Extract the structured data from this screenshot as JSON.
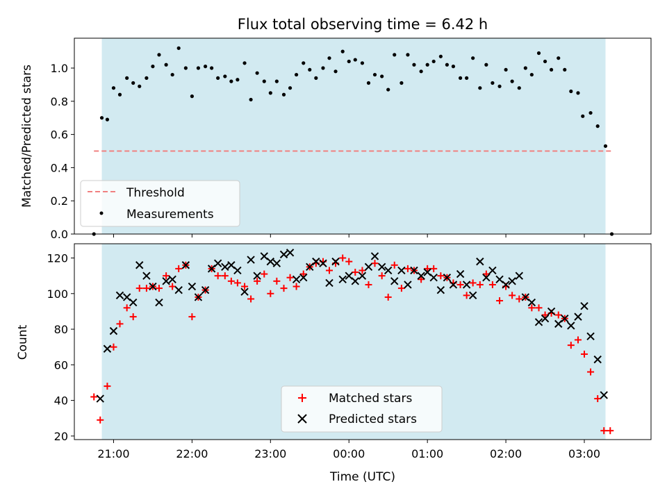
{
  "chart_data": [
    {
      "type": "scatter",
      "title": "Flux total observing time = 6.42 h",
      "xlabel": "",
      "ylabel": "Matched/Predicted stars",
      "ylim": [
        0,
        1.18
      ],
      "yticks": [
        0.0,
        0.2,
        0.4,
        0.6,
        0.8,
        1.0
      ],
      "ytick_labels": [
        "0.0",
        "0.2",
        "0.4",
        "0.6",
        "0.8",
        "1.0"
      ],
      "xlim_hours": [
        -3.5,
        3.85
      ],
      "xticks": [
        -3.0,
        -2.0,
        -1.0,
        0.0,
        1.0,
        2.0,
        3.0
      ],
      "shaded_span": [
        -3.15,
        3.27
      ],
      "shade_color": "#add8e6",
      "grid": false,
      "legend_placement": "lower left",
      "threshold": {
        "name": "Threshold",
        "value": 0.5,
        "x_range": [
          -3.25,
          3.35
        ],
        "color": "#f08080",
        "style": "dashed"
      },
      "series": [
        {
          "name": "Measurements",
          "color": "#000000",
          "points": [
            [
              -3.25,
              0.0
            ],
            [
              -3.15,
              0.7
            ],
            [
              -3.08,
              0.69
            ],
            [
              -3.0,
              0.88
            ],
            [
              -2.92,
              0.84
            ],
            [
              -2.83,
              0.94
            ],
            [
              -2.75,
              0.91
            ],
            [
              -2.67,
              0.89
            ],
            [
              -2.58,
              0.94
            ],
            [
              -2.5,
              1.01
            ],
            [
              -2.42,
              1.08
            ],
            [
              -2.33,
              1.02
            ],
            [
              -2.25,
              0.96
            ],
            [
              -2.17,
              1.12
            ],
            [
              -2.08,
              1.0
            ],
            [
              -2.0,
              0.83
            ],
            [
              -1.92,
              1.0
            ],
            [
              -1.83,
              1.01
            ],
            [
              -1.75,
              1.0
            ],
            [
              -1.67,
              0.94
            ],
            [
              -1.58,
              0.95
            ],
            [
              -1.5,
              0.92
            ],
            [
              -1.42,
              0.93
            ],
            [
              -1.33,
              1.03
            ],
            [
              -1.25,
              0.81
            ],
            [
              -1.17,
              0.97
            ],
            [
              -1.08,
              0.92
            ],
            [
              -1.0,
              0.85
            ],
            [
              -0.92,
              0.92
            ],
            [
              -0.83,
              0.84
            ],
            [
              -0.75,
              0.88
            ],
            [
              -0.67,
              0.96
            ],
            [
              -0.58,
              1.03
            ],
            [
              -0.5,
              0.99
            ],
            [
              -0.42,
              0.94
            ],
            [
              -0.33,
              1.0
            ],
            [
              -0.25,
              1.06
            ],
            [
              -0.17,
              0.98
            ],
            [
              -0.08,
              1.1
            ],
            [
              0.0,
              1.04
            ],
            [
              0.08,
              1.05
            ],
            [
              0.17,
              1.03
            ],
            [
              0.25,
              0.91
            ],
            [
              0.33,
              0.96
            ],
            [
              0.42,
              0.95
            ],
            [
              0.5,
              0.87
            ],
            [
              0.58,
              1.08
            ],
            [
              0.67,
              0.91
            ],
            [
              0.75,
              1.08
            ],
            [
              0.83,
              1.02
            ],
            [
              0.92,
              0.98
            ],
            [
              1.0,
              1.02
            ],
            [
              1.08,
              1.04
            ],
            [
              1.17,
              1.07
            ],
            [
              1.25,
              1.02
            ],
            [
              1.33,
              1.01
            ],
            [
              1.42,
              0.94
            ],
            [
              1.5,
              0.94
            ],
            [
              1.58,
              1.06
            ],
            [
              1.67,
              0.88
            ],
            [
              1.75,
              1.02
            ],
            [
              1.83,
              0.91
            ],
            [
              1.92,
              0.89
            ],
            [
              2.0,
              0.99
            ],
            [
              2.08,
              0.92
            ],
            [
              2.17,
              0.88
            ],
            [
              2.25,
              1.0
            ],
            [
              2.33,
              0.96
            ],
            [
              2.42,
              1.09
            ],
            [
              2.5,
              1.04
            ],
            [
              2.58,
              0.99
            ],
            [
              2.67,
              1.06
            ],
            [
              2.75,
              0.99
            ],
            [
              2.83,
              0.86
            ],
            [
              2.92,
              0.85
            ],
            [
              2.98,
              0.71
            ],
            [
              3.08,
              0.73
            ],
            [
              3.17,
              0.65
            ],
            [
              3.27,
              0.53
            ],
            [
              3.35,
              0.0
            ]
          ]
        }
      ]
    },
    {
      "type": "scatter",
      "title": "",
      "xlabel": "Time (UTC)",
      "ylabel": "Count",
      "ylim": [
        18,
        128
      ],
      "yticks": [
        20,
        40,
        60,
        80,
        100,
        120
      ],
      "ytick_labels": [
        "20",
        "40",
        "60",
        "80",
        "100",
        "120"
      ],
      "xlim_hours": [
        -3.5,
        3.85
      ],
      "xticks": [
        -3.0,
        -2.0,
        -1.0,
        0.0,
        1.0,
        2.0,
        3.0
      ],
      "xtick_labels": [
        "21:00",
        "22:00",
        "23:00",
        "00:00",
        "01:00",
        "02:00",
        "03:00"
      ],
      "shaded_span": [
        -3.15,
        3.27
      ],
      "shade_color": "#add8e6",
      "grid": false,
      "legend_placement": "lower center",
      "series": [
        {
          "name": "Matched stars",
          "marker": "plus",
          "color": "#ff0000",
          "points": [
            [
              -3.25,
              42
            ],
            [
              -3.17,
              29
            ],
            [
              -3.08,
              48
            ],
            [
              -3.0,
              70
            ],
            [
              -2.92,
              83
            ],
            [
              -2.83,
              92
            ],
            [
              -2.75,
              87
            ],
            [
              -2.67,
              103
            ],
            [
              -2.58,
              103
            ],
            [
              -2.5,
              104
            ],
            [
              -2.42,
              103
            ],
            [
              -2.33,
              110
            ],
            [
              -2.25,
              104
            ],
            [
              -2.17,
              114
            ],
            [
              -2.08,
              116
            ],
            [
              -2.0,
              87
            ],
            [
              -1.92,
              98
            ],
            [
              -1.83,
              102
            ],
            [
              -1.75,
              114
            ],
            [
              -1.67,
              110
            ],
            [
              -1.58,
              110
            ],
            [
              -1.5,
              107
            ],
            [
              -1.42,
              106
            ],
            [
              -1.33,
              104
            ],
            [
              -1.25,
              97
            ],
            [
              -1.17,
              107
            ],
            [
              -1.08,
              111
            ],
            [
              -1.0,
              100
            ],
            [
              -0.92,
              107
            ],
            [
              -0.83,
              103
            ],
            [
              -0.75,
              109
            ],
            [
              -0.67,
              104
            ],
            [
              -0.58,
              111
            ],
            [
              -0.5,
              115
            ],
            [
              -0.42,
              117
            ],
            [
              -0.33,
              118
            ],
            [
              -0.25,
              113
            ],
            [
              -0.17,
              117
            ],
            [
              -0.08,
              120
            ],
            [
              0.0,
              118
            ],
            [
              0.08,
              112
            ],
            [
              0.17,
              113
            ],
            [
              0.25,
              105
            ],
            [
              0.33,
              117
            ],
            [
              0.42,
              110
            ],
            [
              0.5,
              98
            ],
            [
              0.58,
              116
            ],
            [
              0.67,
              103
            ],
            [
              0.75,
              114
            ],
            [
              0.83,
              113
            ],
            [
              0.92,
              108
            ],
            [
              1.0,
              114
            ],
            [
              1.08,
              114
            ],
            [
              1.17,
              110
            ],
            [
              1.25,
              109
            ],
            [
              1.33,
              106
            ],
            [
              1.42,
              105
            ],
            [
              1.5,
              99
            ],
            [
              1.58,
              106
            ],
            [
              1.67,
              105
            ],
            [
              1.75,
              111
            ],
            [
              1.83,
              105
            ],
            [
              1.92,
              96
            ],
            [
              2.0,
              104
            ],
            [
              2.08,
              99
            ],
            [
              2.17,
              97
            ],
            [
              2.25,
              98
            ],
            [
              2.33,
              92
            ],
            [
              2.42,
              92
            ],
            [
              2.5,
              88
            ],
            [
              2.58,
              89
            ],
            [
              2.67,
              88
            ],
            [
              2.75,
              86
            ],
            [
              2.83,
              71
            ],
            [
              2.92,
              74
            ],
            [
              3.0,
              66
            ],
            [
              3.08,
              56
            ],
            [
              3.17,
              41
            ],
            [
              3.25,
              23
            ],
            [
              3.33,
              23
            ]
          ]
        },
        {
          "name": "Predicted stars",
          "marker": "x",
          "color": "#000000",
          "points": [
            [
              -3.17,
              41
            ],
            [
              -3.08,
              69
            ],
            [
              -3.0,
              79
            ],
            [
              -2.92,
              99
            ],
            [
              -2.83,
              98
            ],
            [
              -2.75,
              95
            ],
            [
              -2.67,
              116
            ],
            [
              -2.58,
              110
            ],
            [
              -2.5,
              104
            ],
            [
              -2.42,
              95
            ],
            [
              -2.33,
              107
            ],
            [
              -2.25,
              108
            ],
            [
              -2.17,
              102
            ],
            [
              -2.08,
              116
            ],
            [
              -2.0,
              104
            ],
            [
              -1.92,
              98
            ],
            [
              -1.83,
              102
            ],
            [
              -1.75,
              114
            ],
            [
              -1.67,
              117
            ],
            [
              -1.58,
              115
            ],
            [
              -1.5,
              116
            ],
            [
              -1.42,
              113
            ],
            [
              -1.33,
              101
            ],
            [
              -1.25,
              119
            ],
            [
              -1.17,
              110
            ],
            [
              -1.08,
              121
            ],
            [
              -1.0,
              118
            ],
            [
              -0.92,
              117
            ],
            [
              -0.83,
              122
            ],
            [
              -0.75,
              123
            ],
            [
              -0.67,
              108
            ],
            [
              -0.58,
              109
            ],
            [
              -0.5,
              115
            ],
            [
              -0.42,
              118
            ],
            [
              -0.33,
              117
            ],
            [
              -0.25,
              106
            ],
            [
              -0.17,
              118
            ],
            [
              -0.08,
              108
            ],
            [
              0.0,
              110
            ],
            [
              0.08,
              107
            ],
            [
              0.17,
              110
            ],
            [
              0.25,
              115
            ],
            [
              0.33,
              121
            ],
            [
              0.42,
              115
            ],
            [
              0.5,
              113
            ],
            [
              0.58,
              107
            ],
            [
              0.67,
              113
            ],
            [
              0.75,
              105
            ],
            [
              0.83,
              113
            ],
            [
              0.92,
              110
            ],
            [
              1.0,
              112
            ],
            [
              1.08,
              109
            ],
            [
              1.17,
              102
            ],
            [
              1.25,
              109
            ],
            [
              1.33,
              105
            ],
            [
              1.42,
              111
            ],
            [
              1.5,
              105
            ],
            [
              1.58,
              99
            ],
            [
              1.67,
              118
            ],
            [
              1.75,
              109
            ],
            [
              1.83,
              113
            ],
            [
              1.92,
              108
            ],
            [
              2.0,
              105
            ],
            [
              2.08,
              107
            ],
            [
              2.17,
              110
            ],
            [
              2.25,
              98
            ],
            [
              2.33,
              95
            ],
            [
              2.42,
              84
            ],
            [
              2.5,
              86
            ],
            [
              2.58,
              90
            ],
            [
              2.67,
              83
            ],
            [
              2.75,
              86
            ],
            [
              2.83,
              82
            ],
            [
              2.92,
              87
            ],
            [
              3.0,
              93
            ],
            [
              3.08,
              76
            ],
            [
              3.17,
              63
            ],
            [
              3.25,
              43
            ]
          ]
        }
      ]
    }
  ]
}
